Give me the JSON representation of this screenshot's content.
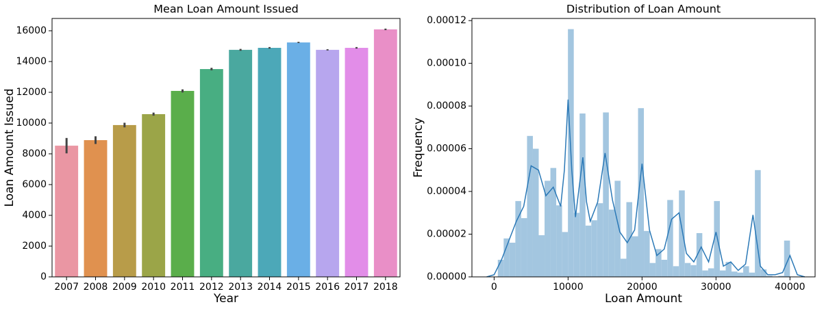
{
  "chart_data": [
    {
      "type": "bar",
      "title": "Mean Loan Amount Issued",
      "xlabel": "Year",
      "ylabel": "Loan Amount Issued",
      "categories": [
        "2007",
        "2008",
        "2009",
        "2010",
        "2011",
        "2012",
        "2013",
        "2014",
        "2015",
        "2016",
        "2017",
        "2018"
      ],
      "values": [
        8530,
        8890,
        9870,
        10580,
        12090,
        13510,
        14760,
        14890,
        15240,
        14760,
        14890,
        16090
      ],
      "errors": [
        500,
        250,
        150,
        100,
        100,
        80,
        60,
        50,
        40,
        40,
        50,
        50
      ],
      "colors": [
        "#ea96a3",
        "#e0914f",
        "#b89c49",
        "#9ba548",
        "#5aae4b",
        "#48ae82",
        "#4aa89f",
        "#4ca8b8",
        "#6aafe6",
        "#b7a6ee",
        "#e28de8",
        "#e98fc7"
      ],
      "error_color": "#444444",
      "ylim": [
        0,
        16800
      ],
      "yticks": [
        0,
        2000,
        4000,
        6000,
        8000,
        10000,
        12000,
        14000,
        16000
      ]
    },
    {
      "type": "histogram",
      "title": "Distribution of Loan Amount",
      "xlabel": "Loan Amount",
      "ylabel": "Frequency",
      "bins": [
        500,
        1290,
        2080,
        2870,
        3660,
        4450,
        5240,
        6030,
        6820,
        7610,
        8400,
        9190,
        9980,
        10770,
        11560,
        12350,
        13140,
        13930,
        14720,
        15510,
        16300,
        17090,
        17880,
        18670,
        19460,
        20250,
        21040,
        21830,
        22620,
        23410,
        24200,
        24990,
        25780,
        26570,
        27360,
        28150,
        28940,
        29730,
        30520,
        31310,
        32100,
        32890,
        33680,
        34470,
        35260,
        36050,
        36840,
        37630,
        38420,
        39210,
        40000
      ],
      "values": [
        8e-06,
        1.8e-05,
        1.6e-05,
        3.55e-05,
        2.75e-05,
        6.6e-05,
        6e-05,
        1.95e-05,
        4.5e-05,
        5.1e-05,
        3.35e-05,
        2.1e-05,
        0.000116,
        3e-05,
        7.65e-05,
        2.4e-05,
        2.65e-05,
        3.45e-05,
        7.7e-05,
        3.15e-05,
        4.5e-05,
        8.5e-06,
        3.5e-05,
        1.9e-05,
        7.9e-05,
        2.15e-05,
        6.5e-06,
        1.3e-05,
        8e-06,
        3.6e-05,
        5e-06,
        4.05e-05,
        6.5e-06,
        5.5e-06,
        2.05e-05,
        3e-06,
        4e-06,
        3.55e-05,
        3e-06,
        7e-06,
        2.5e-06,
        2e-06,
        5e-06,
        2e-06,
        5e-05,
        3.5e-06,
        5e-07,
        2e-07,
        5e-07,
        1.7e-05
      ],
      "color": "#a3c6e0",
      "kde_x": [
        -1000,
        0,
        1000,
        2000,
        3000,
        4000,
        5000,
        6000,
        7000,
        8000,
        9000,
        9500,
        10000,
        10500,
        11000,
        12000,
        12500,
        13000,
        14000,
        15000,
        16000,
        17000,
        18000,
        19000,
        20000,
        21000,
        22000,
        23000,
        24000,
        25000,
        26000,
        27000,
        28000,
        29000,
        30000,
        31000,
        32000,
        33000,
        34000,
        35000,
        36000,
        37000,
        38000,
        39000,
        40000,
        41000,
        42000
      ],
      "kde_y": [
        0,
        1e-06,
        8e-06,
        1.7e-05,
        2.6e-05,
        3.3e-05,
        5.2e-05,
        5e-05,
        3.8e-05,
        4.2e-05,
        3.3e-05,
        5e-05,
        8.3e-05,
        5e-05,
        2.8e-05,
        5.6e-05,
        3.5e-05,
        2.6e-05,
        3.5e-05,
        5.8e-05,
        3.6e-05,
        2.1e-05,
        1.6e-05,
        2.2e-05,
        5.3e-05,
        2.2e-05,
        1e-05,
        1.3e-05,
        2.7e-05,
        3e-05,
        1.1e-05,
        7e-06,
        1.4e-05,
        7e-06,
        2.1e-05,
        5e-06,
        7e-06,
        3e-06,
        6e-06,
        2.9e-05,
        5e-06,
        1e-06,
        1e-06,
        2e-06,
        1e-05,
        1e-06,
        0
      ],
      "kde_color": "#2a78b6",
      "xlim": [
        -3000,
        43400
      ],
      "xticks": [
        0,
        10000,
        20000,
        30000,
        40000
      ],
      "ylim": [
        0,
        0.000121
      ],
      "yticks": [
        {
          "value": 0,
          "label": "0.00000"
        },
        {
          "value": 2e-05,
          "label": "0.00002"
        },
        {
          "value": 4e-05,
          "label": "0.00004"
        },
        {
          "value": 6e-05,
          "label": "0.00006"
        },
        {
          "value": 8e-05,
          "label": "0.00008"
        },
        {
          "value": 0.0001,
          "label": "0.00010"
        },
        {
          "value": 0.00012,
          "label": "0.00012"
        }
      ]
    }
  ]
}
